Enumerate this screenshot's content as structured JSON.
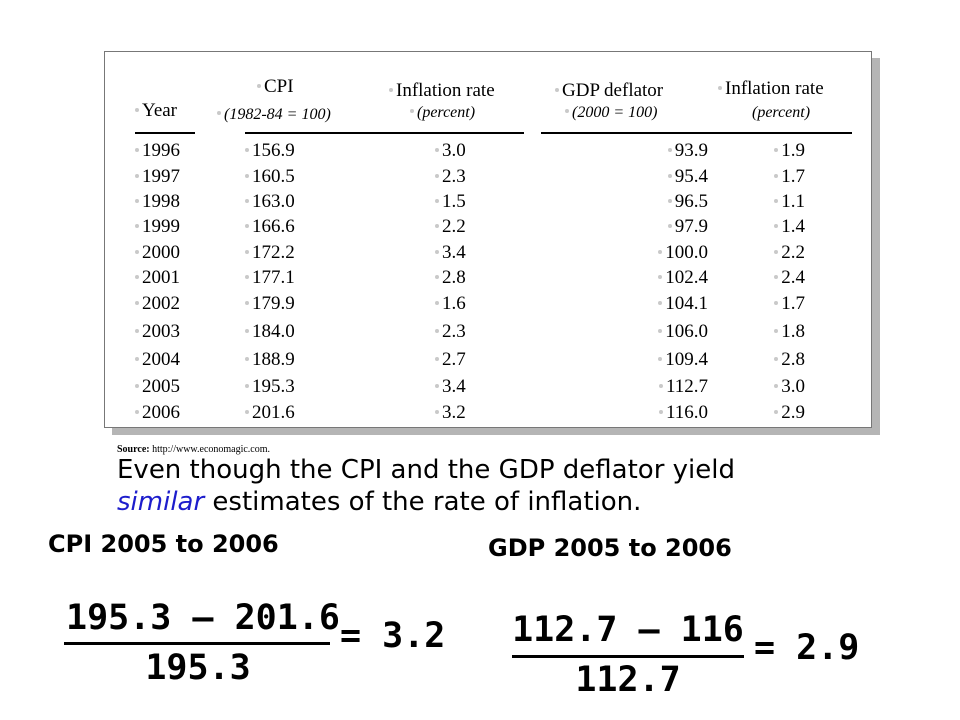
{
  "table": {
    "headers": {
      "year": "Year",
      "cpi": "CPI",
      "cpi_sub": "(1982-84 = 100)",
      "inflation_cpi": "Inflation rate",
      "inflation_cpi_sub": "(percent)",
      "gdp_deflator": "GDP deflator",
      "gdp_deflator_sub": "(2000 = 100)",
      "inflation_gdp": "Inflation rate",
      "inflation_gdp_sub": "(percent)"
    },
    "rows": [
      [
        "1996",
        "156.9",
        "3.0",
        "93.9",
        "1.9"
      ],
      [
        "1997",
        "160.5",
        "2.3",
        "95.4",
        "1.7"
      ],
      [
        "1998",
        "163.0",
        "1.5",
        "96.5",
        "1.1"
      ],
      [
        "1999",
        "166.6",
        "2.2",
        "97.9",
        "1.4"
      ],
      [
        "2000",
        "172.2",
        "3.4",
        "100.0",
        "2.2"
      ],
      [
        "2001",
        "177.1",
        "2.8",
        "102.4",
        "2.4"
      ],
      [
        "2002",
        "179.9",
        "1.6",
        "104.1",
        "1.7"
      ],
      [
        "2003",
        "184.0",
        "2.3",
        "106.0",
        "1.8"
      ],
      [
        "2004",
        "188.9",
        "2.7",
        "109.4",
        "2.8"
      ],
      [
        "2005",
        "195.3",
        "3.4",
        "112.7",
        "3.0"
      ],
      [
        "2006",
        "201.6",
        "3.2",
        "116.0",
        "2.9"
      ]
    ]
  },
  "source": {
    "label": "Source:",
    "url": "http://www.economagic.com."
  },
  "caption": {
    "part1": "Even though the CPI and the GDP deflator yield",
    "highlight": "similar",
    "part2": " estimates of the rate of inflation."
  },
  "cpi_calc": {
    "heading": "CPI 2005 to 2006",
    "numerator": "195.3 – 201.6",
    "denominator": "195.3",
    "result": "= 3.2"
  },
  "gdp_calc": {
    "heading": "GDP 2005 to 2006",
    "numerator": "112.7 – 116",
    "denominator": "112.7",
    "result": "= 2.9"
  }
}
